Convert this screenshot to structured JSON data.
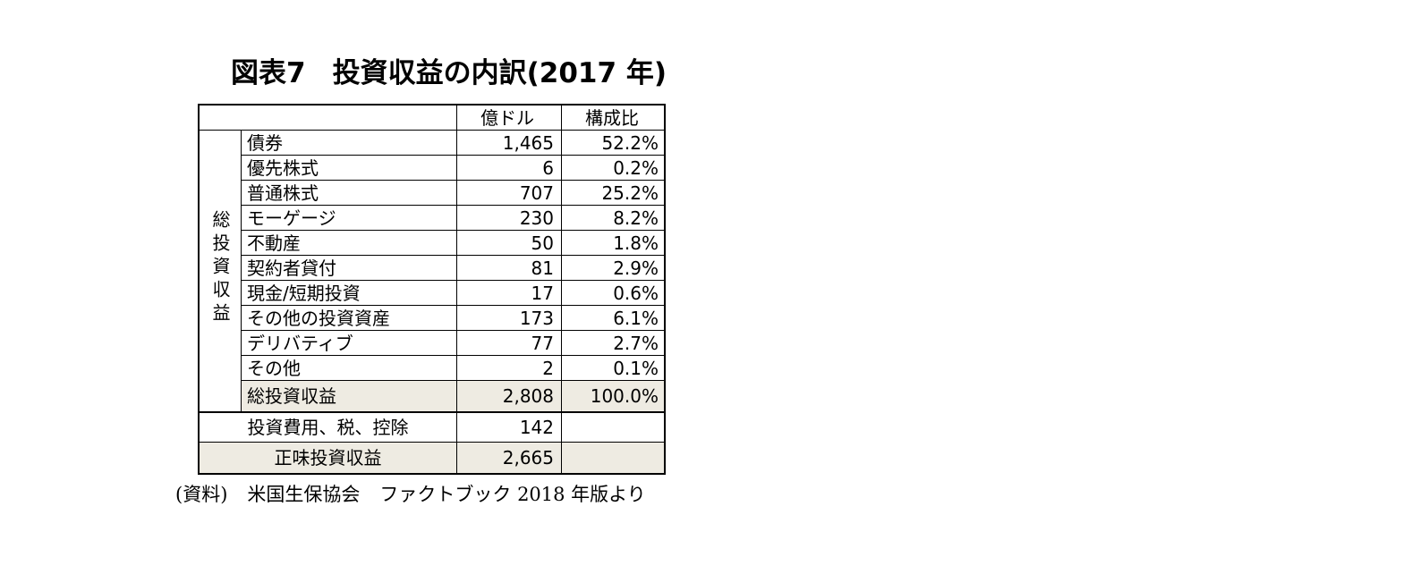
{
  "title": {
    "figure": "図表7",
    "text": "投資収益の内訳(2017 年)"
  },
  "table": {
    "headers": {
      "unit": "億ドル",
      "share": "構成比"
    },
    "side_label": "総投資収益",
    "rows": [
      {
        "label": "債券",
        "value": "1,465",
        "share": "52.2%"
      },
      {
        "label": "優先株式",
        "value": "6",
        "share": "0.2%"
      },
      {
        "label": "普通株式",
        "value": "707",
        "share": "25.2%"
      },
      {
        "label": "モーゲージ",
        "value": "230",
        "share": "8.2%"
      },
      {
        "label": "不動産",
        "value": "50",
        "share": "1.8%"
      },
      {
        "label": "契約者貸付",
        "value": "81",
        "share": "2.9%"
      },
      {
        "label": "現金/短期投資",
        "value": "17",
        "share": "0.6%"
      },
      {
        "label": "その他の投資資産",
        "value": "173",
        "share": "6.1%"
      },
      {
        "label": "デリバティブ",
        "value": "77",
        "share": "2.7%"
      },
      {
        "label": "その他",
        "value": "2",
        "share": "0.1%"
      }
    ],
    "total": {
      "label": "総投資収益",
      "value": "2,808",
      "share": "100.0%"
    },
    "expenses": {
      "label": "投資費用、税、控除",
      "value": "142",
      "share": ""
    },
    "net": {
      "label": "正味投資収益",
      "value": "2,665",
      "share": ""
    }
  },
  "source": {
    "label": "(資料)",
    "text": "米国生保協会",
    "detail": "ファクトブック 2018 年版より"
  }
}
